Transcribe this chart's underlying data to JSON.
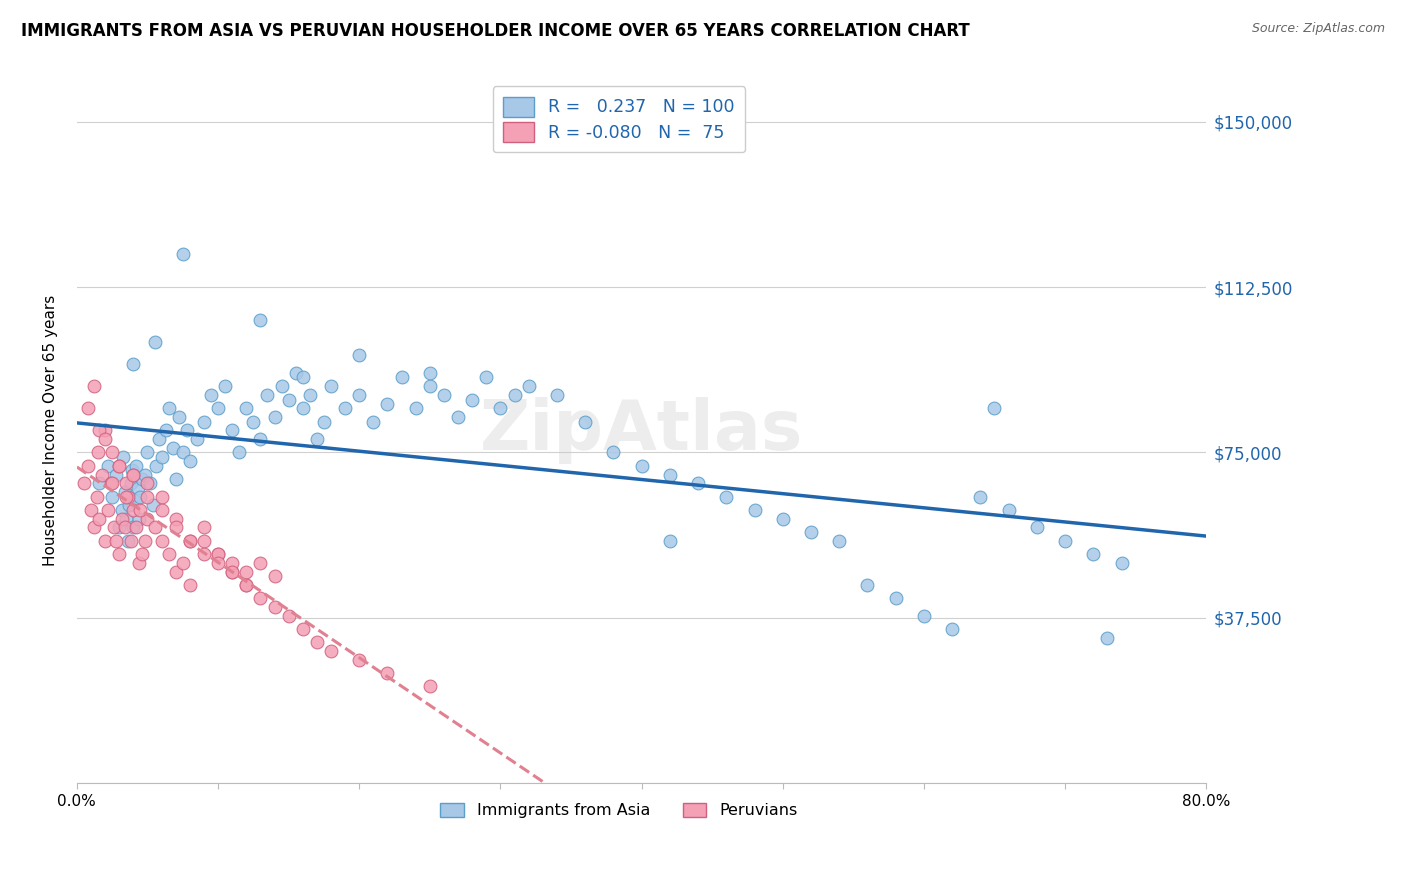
{
  "title": "IMMIGRANTS FROM ASIA VS PERUVIAN HOUSEHOLDER INCOME OVER 65 YEARS CORRELATION CHART",
  "source": "Source: ZipAtlas.com",
  "ylabel": "Householder Income Over 65 years",
  "xlim": [
    0,
    0.8
  ],
  "ylim": [
    0,
    160000
  ],
  "yticks": [
    0,
    37500,
    75000,
    112500,
    150000
  ],
  "ytick_labels": [
    "",
    "$37,500",
    "$75,000",
    "$112,500",
    "$150,000"
  ],
  "xticks": [
    0.0,
    0.1,
    0.2,
    0.3,
    0.4,
    0.5,
    0.6,
    0.7,
    0.8
  ],
  "xtick_labels": [
    "0.0%",
    "",
    "",
    "",
    "",
    "",
    "",
    "",
    "80.0%"
  ],
  "blue_color": "#a8c8e8",
  "blue_edge": "#5b9ec9",
  "pink_color": "#f4a0b5",
  "pink_edge": "#d06080",
  "line_blue": "#2166ac",
  "line_pink": "#e08090",
  "legend_R_blue": "0.237",
  "legend_N_blue": "100",
  "legend_R_pink": "-0.080",
  "legend_N_pink": "75",
  "blue_x": [
    0.016,
    0.022,
    0.025,
    0.028,
    0.03,
    0.032,
    0.033,
    0.034,
    0.035,
    0.036,
    0.037,
    0.038,
    0.039,
    0.04,
    0.041,
    0.042,
    0.043,
    0.044,
    0.045,
    0.046,
    0.048,
    0.05,
    0.052,
    0.054,
    0.056,
    0.058,
    0.06,
    0.063,
    0.065,
    0.068,
    0.07,
    0.072,
    0.075,
    0.078,
    0.08,
    0.085,
    0.09,
    0.095,
    0.1,
    0.105,
    0.11,
    0.115,
    0.12,
    0.125,
    0.13,
    0.135,
    0.14,
    0.145,
    0.15,
    0.155,
    0.16,
    0.165,
    0.17,
    0.175,
    0.18,
    0.19,
    0.2,
    0.21,
    0.22,
    0.23,
    0.24,
    0.25,
    0.26,
    0.27,
    0.28,
    0.29,
    0.3,
    0.32,
    0.34,
    0.36,
    0.38,
    0.4,
    0.42,
    0.44,
    0.46,
    0.48,
    0.5,
    0.52,
    0.54,
    0.56,
    0.58,
    0.6,
    0.62,
    0.64,
    0.66,
    0.68,
    0.7,
    0.72,
    0.74,
    0.65,
    0.04,
    0.055,
    0.075,
    0.13,
    0.16,
    0.2,
    0.25,
    0.31,
    0.42,
    0.73
  ],
  "blue_y": [
    68000,
    72000,
    65000,
    70000,
    58000,
    62000,
    74000,
    66000,
    60000,
    55000,
    63000,
    68000,
    71000,
    58000,
    64000,
    72000,
    67000,
    60000,
    65000,
    69000,
    70000,
    75000,
    68000,
    63000,
    72000,
    78000,
    74000,
    80000,
    85000,
    76000,
    69000,
    83000,
    75000,
    80000,
    73000,
    78000,
    82000,
    88000,
    85000,
    90000,
    80000,
    75000,
    85000,
    82000,
    78000,
    88000,
    83000,
    90000,
    87000,
    93000,
    85000,
    88000,
    78000,
    82000,
    90000,
    85000,
    88000,
    82000,
    86000,
    92000,
    85000,
    90000,
    88000,
    83000,
    87000,
    92000,
    85000,
    90000,
    88000,
    82000,
    75000,
    72000,
    70000,
    68000,
    65000,
    62000,
    60000,
    57000,
    55000,
    45000,
    42000,
    38000,
    35000,
    65000,
    62000,
    58000,
    55000,
    52000,
    50000,
    85000,
    95000,
    100000,
    120000,
    105000,
    92000,
    97000,
    93000,
    88000,
    55000,
    33000
  ],
  "pink_x": [
    0.005,
    0.008,
    0.01,
    0.012,
    0.014,
    0.016,
    0.018,
    0.02,
    0.022,
    0.024,
    0.026,
    0.028,
    0.03,
    0.032,
    0.034,
    0.036,
    0.038,
    0.04,
    0.042,
    0.044,
    0.046,
    0.048,
    0.05,
    0.055,
    0.06,
    0.065,
    0.07,
    0.075,
    0.08,
    0.09,
    0.1,
    0.11,
    0.12,
    0.13,
    0.14,
    0.015,
    0.02,
    0.025,
    0.03,
    0.035,
    0.04,
    0.045,
    0.05,
    0.06,
    0.07,
    0.08,
    0.09,
    0.1,
    0.11,
    0.12,
    0.008,
    0.012,
    0.016,
    0.02,
    0.025,
    0.03,
    0.035,
    0.04,
    0.05,
    0.06,
    0.07,
    0.08,
    0.09,
    0.1,
    0.11,
    0.12,
    0.13,
    0.14,
    0.15,
    0.16,
    0.17,
    0.18,
    0.2,
    0.22,
    0.25
  ],
  "pink_y": [
    68000,
    72000,
    62000,
    58000,
    65000,
    60000,
    70000,
    55000,
    62000,
    68000,
    58000,
    55000,
    52000,
    60000,
    58000,
    65000,
    55000,
    62000,
    58000,
    50000,
    52000,
    55000,
    60000,
    58000,
    55000,
    52000,
    48000,
    50000,
    45000,
    55000,
    52000,
    48000,
    45000,
    50000,
    47000,
    75000,
    80000,
    68000,
    72000,
    65000,
    70000,
    62000,
    68000,
    65000,
    60000,
    55000,
    58000,
    52000,
    50000,
    48000,
    85000,
    90000,
    80000,
    78000,
    75000,
    72000,
    68000,
    70000,
    65000,
    62000,
    58000,
    55000,
    52000,
    50000,
    48000,
    45000,
    42000,
    40000,
    38000,
    35000,
    32000,
    30000,
    28000,
    25000,
    22000
  ]
}
